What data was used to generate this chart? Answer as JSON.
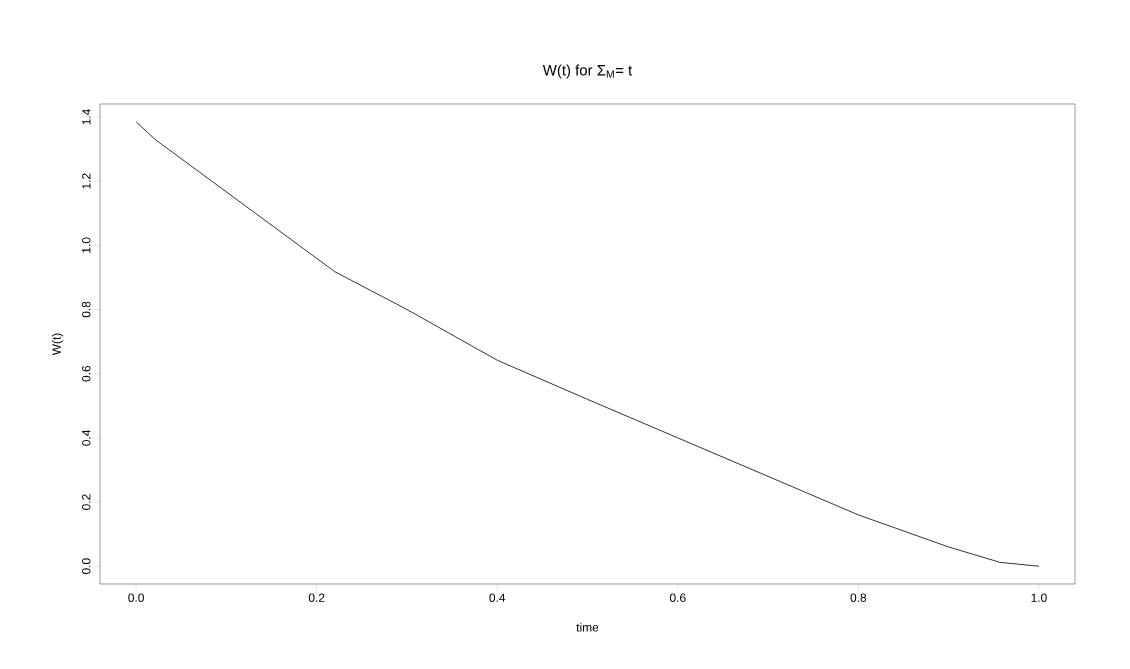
{
  "chart_data": {
    "type": "line",
    "title": "W(t) for Σ$_{M}$= t",
    "xlabel": "time",
    "ylabel": "W(t)",
    "x": [
      0,
      0.021,
      0.22,
      0.3,
      0.4,
      0.5,
      0.6,
      0.7,
      0.8,
      0.9,
      0.957,
      1.0
    ],
    "series": [
      {
        "color": "#000000",
        "values": [
          1.385,
          1.33,
          0.918,
          0.8,
          0.642,
          0.52,
          0.4,
          0.28,
          0.16,
          0.06,
          0.012,
          0.0
        ]
      }
    ],
    "xlim": [
      -0.04,
      1.04
    ],
    "ylim": [
      -0.0554,
      1.4404
    ],
    "xticks": [
      {
        "value": 0,
        "label": "0.0"
      },
      {
        "value": 0.2,
        "label": "0.2"
      },
      {
        "value": 0.4,
        "label": "0.4"
      },
      {
        "value": 0.6,
        "label": "0.6"
      },
      {
        "value": 0.8,
        "label": "0.8"
      },
      {
        "value": 1,
        "label": "1.0"
      }
    ],
    "yticks": [
      {
        "value": 0,
        "label": "0.0"
      },
      {
        "value": 0.2,
        "label": "0.2"
      },
      {
        "value": 0.4,
        "label": "0.4"
      },
      {
        "value": 0.6,
        "label": "0.6"
      },
      {
        "value": 0.8,
        "label": "0.8"
      },
      {
        "value": 1,
        "label": "1.0"
      },
      {
        "value": 1.2,
        "label": "1.2"
      },
      {
        "value": 1.4,
        "label": "1.4"
      }
    ],
    "grid": false,
    "marker": "none",
    "line_style": "solid"
  }
}
